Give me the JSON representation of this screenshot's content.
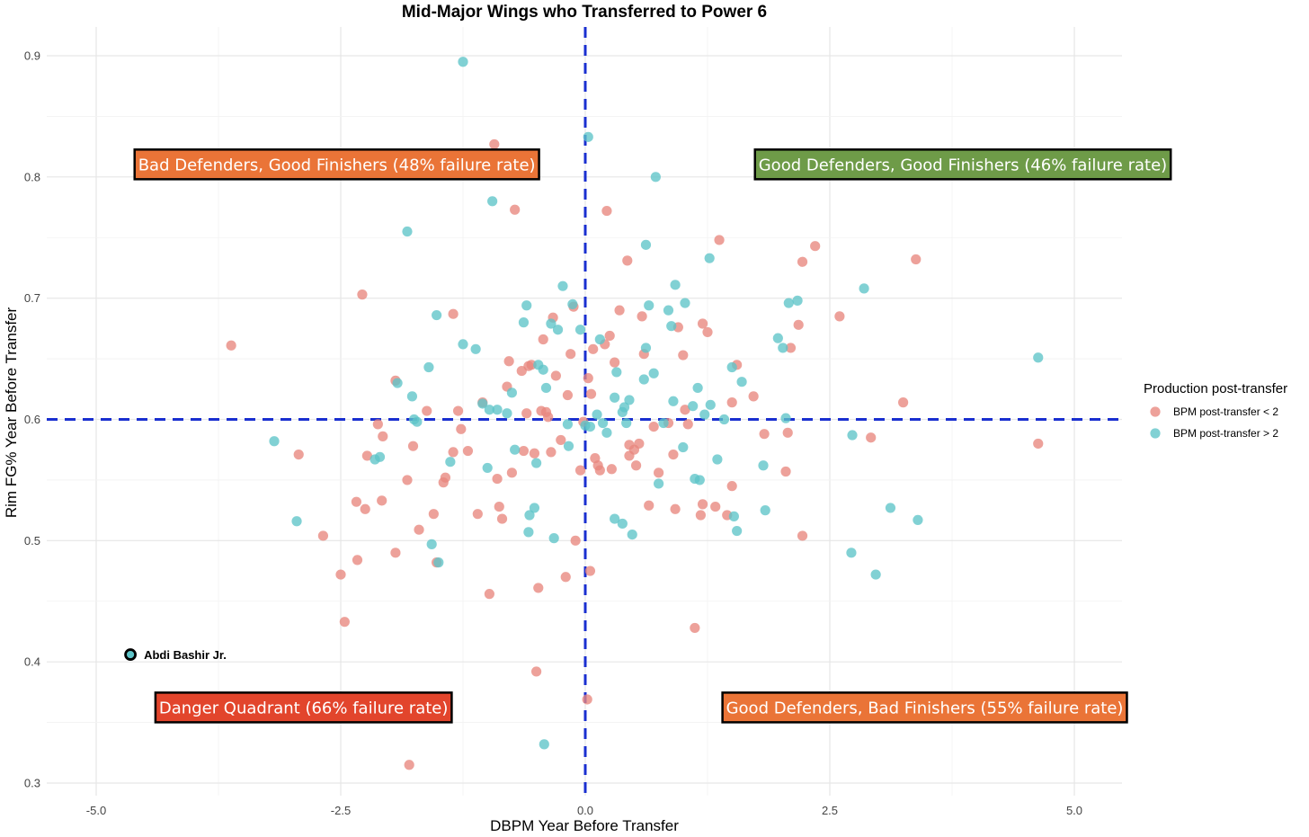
{
  "chart_data": {
    "type": "scatter",
    "title": "Mid-Major Wings who Transferred to Power 6",
    "xlabel": "DBPM Year Before Transfer",
    "ylabel": "Rim FG% Year Before Transfer",
    "xlim": [
      -5.5,
      5.5
    ],
    "ylim": [
      0.3,
      0.92
    ],
    "xticks": [
      -5.0,
      -2.5,
      0.0,
      2.5,
      5.0
    ],
    "xtick_labels": [
      "-5.0",
      "-2.5",
      "0.0",
      "2.5",
      "5.0"
    ],
    "yticks": [
      0.3,
      0.4,
      0.5,
      0.6,
      0.7,
      0.8,
      0.9
    ],
    "ytick_labels": [
      "0.3",
      "0.4",
      "0.5",
      "0.6",
      "0.7",
      "0.8",
      "0.9"
    ],
    "grid": true,
    "reference_lines": {
      "x": 0.0,
      "y": 0.6,
      "color": "#1a2fd0",
      "style": "dashed"
    },
    "legend": {
      "title": "Production post-transfer",
      "placement": "right",
      "entries": [
        {
          "label": "BPM post-transfer < 2",
          "color": "#e8877e"
        },
        {
          "label": "BPM post-transfer > 2",
          "color": "#5ec4c8"
        }
      ]
    },
    "annotations": [
      {
        "text": "Bad Defenders, Good Finishers (48% failure rate)",
        "x": -2.54,
        "y": 0.81,
        "bg": "#ea7437"
      },
      {
        "text": "Good Defenders, Good Finishers (46% failure rate)",
        "x": 3.86,
        "y": 0.81,
        "bg": "#6e9b48"
      },
      {
        "text": "Danger Quadrant (66% failure rate)",
        "x": -2.88,
        "y": 0.362,
        "bg": "#e2452c"
      },
      {
        "text": "Good Defenders, Bad Finishers (55% failure rate)",
        "x": 3.47,
        "y": 0.362,
        "bg": "#ea7437"
      }
    ],
    "highlight": {
      "label": "Abdi Bashir Jr.",
      "x": -4.65,
      "y": 0.406
    },
    "series": [
      {
        "name": "BPM post-transfer < 2",
        "color": "#e8877e",
        "points": [
          [
            -3.62,
            0.661
          ],
          [
            -2.93,
            0.571
          ],
          [
            -2.68,
            0.504
          ],
          [
            -2.28,
            0.703
          ],
          [
            -2.5,
            0.472
          ],
          [
            -2.46,
            0.433
          ],
          [
            -2.34,
            0.532
          ],
          [
            -2.33,
            0.484
          ],
          [
            -2.25,
            0.526
          ],
          [
            -2.23,
            0.57
          ],
          [
            -2.12,
            0.596
          ],
          [
            -2.08,
            0.533
          ],
          [
            -2.07,
            0.586
          ],
          [
            -1.94,
            0.49
          ],
          [
            -1.94,
            0.632
          ],
          [
            -1.82,
            0.55
          ],
          [
            -1.76,
            0.578
          ],
          [
            -1.7,
            0.509
          ],
          [
            -1.8,
            0.315
          ],
          [
            -1.62,
            0.607
          ],
          [
            -1.55,
            0.522
          ],
          [
            -1.52,
            0.482
          ],
          [
            -1.45,
            0.548
          ],
          [
            -1.43,
            0.552
          ],
          [
            -1.35,
            0.573
          ],
          [
            -1.35,
            0.687
          ],
          [
            -1.3,
            0.607
          ],
          [
            -1.27,
            0.592
          ],
          [
            -1.2,
            0.574
          ],
          [
            -1.1,
            0.522
          ],
          [
            -1.05,
            0.614
          ],
          [
            -0.98,
            0.456
          ],
          [
            -0.93,
            0.827
          ],
          [
            -0.9,
            0.551
          ],
          [
            -0.88,
            0.528
          ],
          [
            -0.85,
            0.518
          ],
          [
            -0.8,
            0.627
          ],
          [
            -0.78,
            0.648
          ],
          [
            -0.75,
            0.556
          ],
          [
            -0.72,
            0.773
          ],
          [
            -0.65,
            0.64
          ],
          [
            -0.63,
            0.574
          ],
          [
            -0.58,
            0.644
          ],
          [
            -0.55,
            0.645
          ],
          [
            -0.52,
            0.572
          ],
          [
            -0.5,
            0.392
          ],
          [
            -0.48,
            0.461
          ],
          [
            -0.45,
            0.607
          ],
          [
            -0.43,
            0.666
          ],
          [
            -0.4,
            0.606
          ],
          [
            -0.38,
            0.602
          ],
          [
            -0.35,
            0.573
          ],
          [
            -0.33,
            0.684
          ],
          [
            -0.3,
            0.636
          ],
          [
            -0.25,
            0.583
          ],
          [
            -0.18,
            0.62
          ],
          [
            -0.15,
            0.654
          ],
          [
            -0.12,
            0.693
          ],
          [
            -0.1,
            0.5
          ],
          [
            -0.05,
            0.558
          ],
          [
            -0.02,
            0.598
          ],
          [
            0.03,
            0.634
          ],
          [
            0.05,
            0.475
          ],
          [
            0.06,
            0.621
          ],
          [
            0.08,
            0.658
          ],
          [
            0.1,
            0.568
          ],
          [
            0.13,
            0.562
          ],
          [
            0.15,
            0.558
          ],
          [
            0.2,
            0.662
          ],
          [
            0.22,
            0.772
          ],
          [
            0.25,
            0.669
          ],
          [
            0.27,
            0.559
          ],
          [
            0.3,
            0.647
          ],
          [
            0.35,
            0.69
          ],
          [
            0.43,
            0.731
          ],
          [
            0.45,
            0.579
          ],
          [
            0.5,
            0.575
          ],
          [
            0.52,
            0.562
          ],
          [
            0.55,
            0.58
          ],
          [
            0.58,
            0.685
          ],
          [
            0.6,
            0.654
          ],
          [
            0.65,
            0.529
          ],
          [
            0.7,
            0.594
          ],
          [
            0.75,
            0.556
          ],
          [
            0.85,
            0.597
          ],
          [
            0.9,
            0.571
          ],
          [
            0.92,
            0.526
          ],
          [
            0.95,
            0.676
          ],
          [
            1.0,
            0.653
          ],
          [
            1.02,
            0.608
          ],
          [
            1.05,
            0.596
          ],
          [
            1.12,
            0.428
          ],
          [
            1.18,
            0.521
          ],
          [
            1.2,
            0.679
          ],
          [
            1.25,
            0.672
          ],
          [
            1.33,
            0.528
          ],
          [
            1.37,
            0.748
          ],
          [
            1.45,
            0.521
          ],
          [
            1.5,
            0.545
          ],
          [
            1.55,
            0.645
          ],
          [
            1.5,
            0.614
          ],
          [
            1.72,
            0.619
          ],
          [
            1.83,
            0.588
          ],
          [
            2.05,
            0.557
          ],
          [
            2.07,
            0.589
          ],
          [
            2.1,
            0.659
          ],
          [
            2.18,
            0.678
          ],
          [
            2.22,
            0.73
          ],
          [
            2.22,
            0.504
          ],
          [
            2.35,
            0.743
          ],
          [
            2.6,
            0.685
          ],
          [
            2.92,
            0.585
          ],
          [
            3.25,
            0.614
          ],
          [
            3.38,
            0.732
          ],
          [
            4.63,
            0.58
          ],
          [
            0.02,
            0.369
          ],
          [
            -0.6,
            0.605
          ],
          [
            -0.2,
            0.47
          ],
          [
            1.2,
            0.53
          ],
          [
            0.45,
            0.57
          ]
        ]
      },
      {
        "name": "BPM post-transfer > 2",
        "color": "#5ec4c8",
        "points": [
          [
            -3.18,
            0.582
          ],
          [
            -2.95,
            0.516
          ],
          [
            -2.15,
            0.567
          ],
          [
            -2.1,
            0.569
          ],
          [
            -1.92,
            0.63
          ],
          [
            -1.82,
            0.755
          ],
          [
            -1.77,
            0.619
          ],
          [
            -1.75,
            0.6
          ],
          [
            -1.72,
            0.598
          ],
          [
            -1.6,
            0.643
          ],
          [
            -1.57,
            0.497
          ],
          [
            -1.52,
            0.686
          ],
          [
            -1.5,
            0.482
          ],
          [
            -1.38,
            0.565
          ],
          [
            -1.25,
            0.662
          ],
          [
            -1.12,
            0.658
          ],
          [
            -1.05,
            0.613
          ],
          [
            -1.0,
            0.56
          ],
          [
            -0.95,
            0.78
          ],
          [
            -0.9,
            0.608
          ],
          [
            -0.8,
            0.605
          ],
          [
            -0.75,
            0.622
          ],
          [
            -0.72,
            0.575
          ],
          [
            -0.63,
            0.68
          ],
          [
            -0.6,
            0.694
          ],
          [
            -0.58,
            0.507
          ],
          [
            -0.57,
            0.521
          ],
          [
            -0.52,
            0.527
          ],
          [
            -0.5,
            0.564
          ],
          [
            -0.48,
            0.645
          ],
          [
            -0.43,
            0.641
          ],
          [
            -0.4,
            0.626
          ],
          [
            -0.35,
            0.679
          ],
          [
            -0.32,
            0.502
          ],
          [
            -0.28,
            0.674
          ],
          [
            -0.23,
            0.71
          ],
          [
            -0.18,
            0.596
          ],
          [
            -0.17,
            0.578
          ],
          [
            -0.13,
            0.695
          ],
          [
            -0.05,
            0.674
          ],
          [
            0.0,
            0.595
          ],
          [
            0.03,
            0.833
          ],
          [
            0.12,
            0.604
          ],
          [
            0.15,
            0.666
          ],
          [
            0.22,
            0.589
          ],
          [
            0.3,
            0.518
          ],
          [
            0.32,
            0.639
          ],
          [
            0.38,
            0.514
          ],
          [
            0.4,
            0.61
          ],
          [
            0.42,
            0.597
          ],
          [
            0.45,
            0.616
          ],
          [
            0.48,
            0.505
          ],
          [
            0.6,
            0.633
          ],
          [
            0.62,
            0.744
          ],
          [
            0.62,
            0.659
          ],
          [
            0.65,
            0.694
          ],
          [
            0.7,
            0.638
          ],
          [
            0.72,
            0.8
          ],
          [
            0.75,
            0.547
          ],
          [
            0.8,
            0.597
          ],
          [
            0.85,
            0.69
          ],
          [
            0.88,
            0.677
          ],
          [
            0.9,
            0.615
          ],
          [
            0.92,
            0.711
          ],
          [
            1.0,
            0.577
          ],
          [
            1.02,
            0.696
          ],
          [
            1.1,
            0.611
          ],
          [
            1.12,
            0.551
          ],
          [
            1.15,
            0.626
          ],
          [
            1.17,
            0.55
          ],
          [
            1.22,
            0.604
          ],
          [
            1.27,
            0.733
          ],
          [
            1.28,
            0.612
          ],
          [
            1.35,
            0.567
          ],
          [
            1.42,
            0.6
          ],
          [
            1.5,
            0.643
          ],
          [
            1.52,
            0.52
          ],
          [
            1.55,
            0.508
          ],
          [
            1.6,
            0.631
          ],
          [
            1.82,
            0.562
          ],
          [
            1.84,
            0.525
          ],
          [
            1.97,
            0.667
          ],
          [
            2.02,
            0.659
          ],
          [
            2.05,
            0.601
          ],
          [
            2.08,
            0.696
          ],
          [
            2.17,
            0.698
          ],
          [
            2.72,
            0.49
          ],
          [
            2.73,
            0.587
          ],
          [
            2.85,
            0.708
          ],
          [
            2.97,
            0.472
          ],
          [
            3.12,
            0.527
          ],
          [
            3.4,
            0.517
          ],
          [
            4.63,
            0.651
          ],
          [
            -1.25,
            0.895
          ],
          [
            -0.42,
            0.332
          ],
          [
            0.18,
            0.597
          ],
          [
            0.05,
            0.594
          ],
          [
            0.38,
            0.606
          ],
          [
            -0.98,
            0.608
          ],
          [
            0.3,
            0.618
          ]
        ]
      }
    ]
  }
}
